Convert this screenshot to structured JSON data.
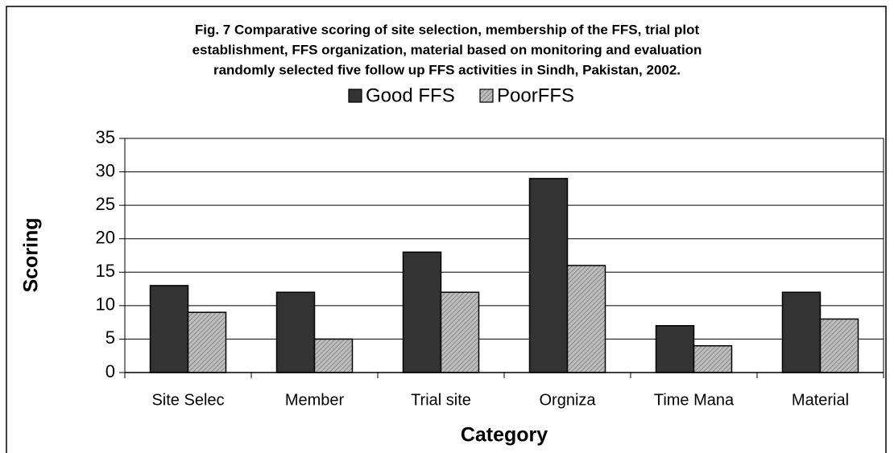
{
  "chart_data": {
    "type": "bar",
    "title": [
      "Fig. 7 Comparative scoring of site selection, membership of the FFS, trial plot",
      "establishment, FFS organization, material  based on monitoring and evaluation",
      "randomly selected five  follow up FFS activities in Sindh, Pakistan, 2002."
    ],
    "y_label": "Scoring",
    "x_label": "Category",
    "categories": [
      "Site Selec",
      "Member",
      "Trial site",
      "Orgniza",
      "Time Mana",
      "Material"
    ],
    "series": [
      {
        "name": "Good FFS",
        "color": "#333333",
        "values": [
          13,
          12,
          18,
          29,
          7,
          12
        ]
      },
      {
        "name": "PoorFFS",
        "color": "#a6a6a6",
        "values": [
          9,
          5,
          12,
          16,
          4,
          8
        ]
      }
    ],
    "ylim": [
      0,
      35
    ],
    "yticks": [
      0,
      5,
      10,
      15,
      20,
      25,
      30,
      35
    ],
    "grid": true,
    "legend": "top"
  }
}
